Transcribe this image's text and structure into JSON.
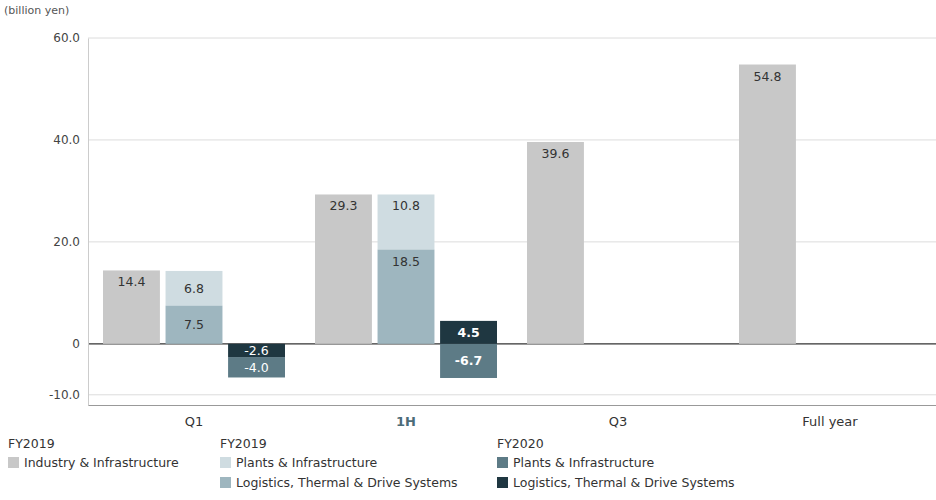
{
  "chart_data": {
    "type": "bar",
    "y_label": "(billion yen)",
    "categories": [
      "Q1",
      "1H",
      "Q3",
      "Full year"
    ],
    "ylim": [
      -12,
      60
    ],
    "yticks": [
      {
        "value": -10,
        "label": "-10.0"
      },
      0,
      {
        "value": 20,
        "label": "20.0"
      },
      {
        "value": 40,
        "label": "40.0"
      },
      {
        "value": 60,
        "label": "60.0"
      }
    ],
    "grid": true,
    "stacked": true,
    "data_labels": true,
    "legend": "bottom",
    "groups": [
      {
        "name": "FY2019",
        "series": [
          {
            "name": "Industry & Infrastructure",
            "color": "#c8c8c8",
            "values": [
              14.4,
              29.3,
              39.6,
              54.8
            ],
            "value_labels": [
              "14.4",
              "29.3",
              "39.6",
              "54.8"
            ]
          }
        ]
      },
      {
        "name": "FY2019",
        "series": [
          {
            "name": "Plants & Infrastructure",
            "color": "#cfdce1",
            "values": [
              6.8,
              10.8,
              null,
              null
            ],
            "value_labels": [
              "6.8",
              "10.8",
              null,
              null
            ]
          },
          {
            "name": "Logistics, Thermal & Drive Systems",
            "color": "#9eb6bf",
            "values": [
              7.5,
              18.5,
              null,
              null
            ],
            "value_labels": [
              "7.5",
              "18.5",
              null,
              null
            ]
          }
        ]
      },
      {
        "name": "FY2020",
        "series": [
          {
            "name": "Plants & Infrastructure",
            "color": "#5d7b86",
            "values": [
              -4.0,
              -6.7,
              null,
              null
            ],
            "value_labels": [
              "-4.0",
              "-6.7",
              null,
              null
            ]
          },
          {
            "name": "Logistics, Thermal & Drive Systems",
            "color": "#1f3741",
            "values": [
              -2.6,
              4.5,
              null,
              null
            ],
            "value_labels": [
              "-2.6",
              "4.5",
              null,
              null
            ]
          }
        ]
      }
    ]
  }
}
